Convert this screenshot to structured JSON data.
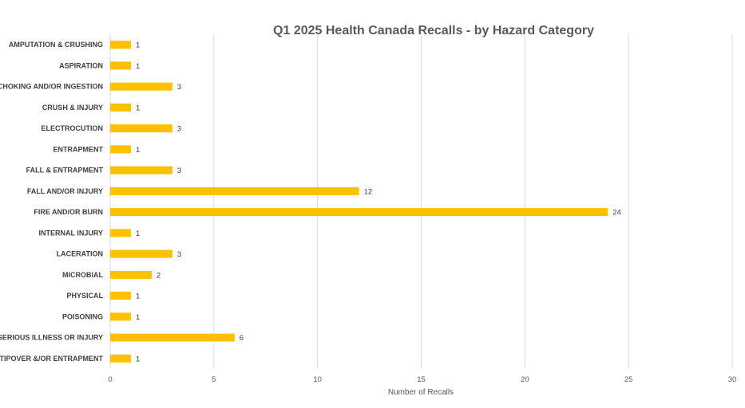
{
  "chart_data": {
    "type": "bar",
    "orientation": "horizontal",
    "title": "Q1 2025 Health Canada Recalls - by Hazard Category",
    "xlabel": "Number of Recalls",
    "ylabel": "",
    "xlim": [
      0,
      30
    ],
    "xticks": [
      0,
      5,
      10,
      15,
      20,
      25,
      30
    ],
    "grid": "vertical",
    "bar_color": "#FFC000",
    "data_labels": true,
    "categories": [
      "AMPUTATION & CRUSHING",
      "ASPIRATION",
      "CHOKING AND/OR INGESTION",
      "CRUSH & INJURY",
      "ELECTROCUTION",
      "ENTRAPMENT",
      "FALL & ENTRAPMENT",
      "FALL AND/OR INJURY",
      "FIRE AND/OR BURN",
      "INTERNAL INJURY",
      "LACERATION",
      "MICROBIAL",
      "PHYSICAL",
      "POISONING",
      "SERIOUS ILLNESS OR INJURY",
      "TIPOVER &/OR ENTRAPMENT"
    ],
    "values": [
      1,
      1,
      3,
      1,
      3,
      1,
      3,
      12,
      24,
      1,
      3,
      2,
      1,
      1,
      6,
      1
    ]
  }
}
